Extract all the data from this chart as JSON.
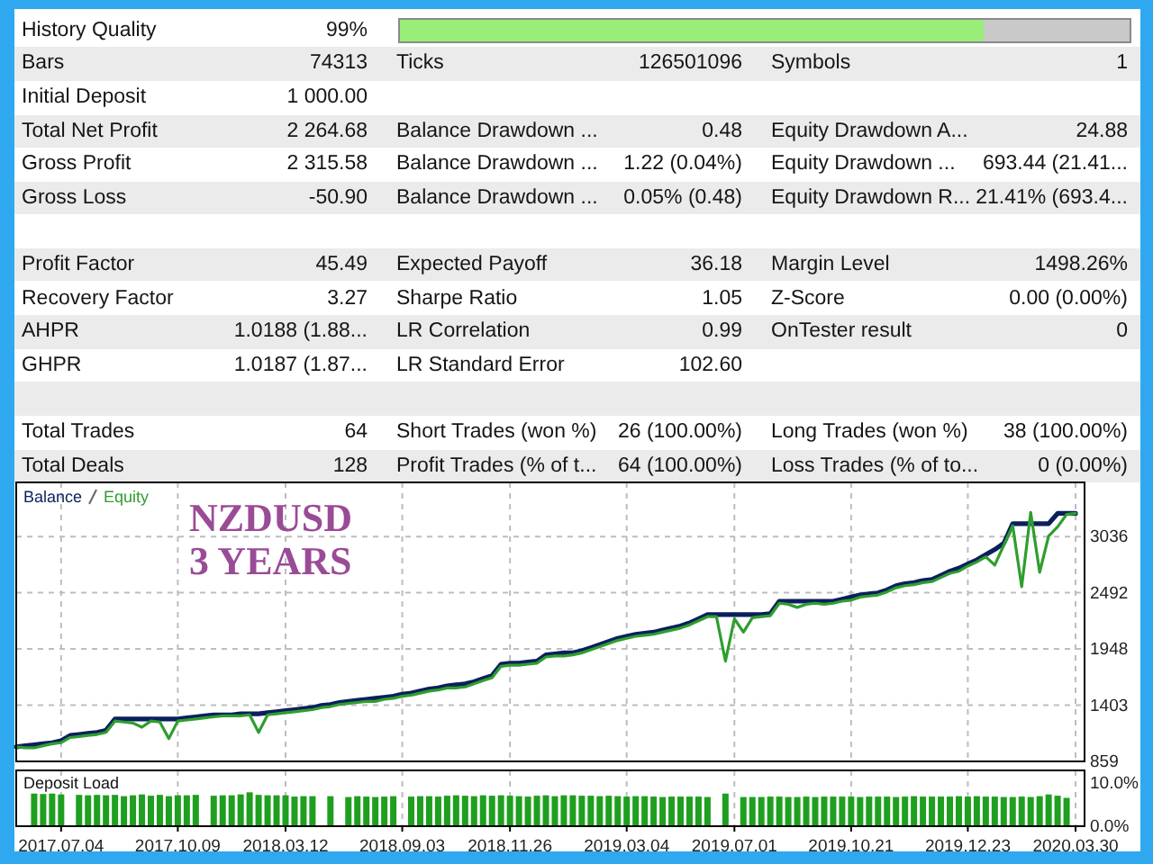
{
  "chart_data": [
    {
      "type": "other",
      "categories": [
        "History Quality",
        null,
        null,
        "Bars",
        "Ticks",
        "Symbols",
        "Initial Deposit",
        null,
        null,
        "Total Net Profit",
        "Balance Drawdown ...",
        "Equity Drawdown A...",
        "Gross Profit",
        "Balance Drawdown ...",
        "Equity Drawdown ...",
        "Gross Loss",
        "Balance Drawdown ...",
        "Equity Drawdown R...",
        null,
        null,
        null,
        "Profit Factor",
        "Expected Payoff",
        "Margin Level",
        "Recovery Factor",
        "Sharpe Ratio",
        "Z-Score",
        "AHPR",
        "LR Correlation",
        "OnTester result",
        "GHPR",
        "LR Standard Error",
        null,
        null,
        null,
        null,
        "Total Trades",
        "Short Trades (won %)",
        "Long Trades (won %)",
        "Total Deals",
        "Profit Trades (% of t...",
        "Loss Trades (% of to..."
      ],
      "value_labels": [
        "99%",
        null,
        null,
        "74313",
        "126501096",
        "1",
        "1 000.00",
        null,
        null,
        "2 264.68",
        "0.48",
        "24.88",
        "2 315.58",
        "1.22 (0.04%)",
        "693.44 (21.41...",
        "-50.90",
        "0.05% (0.48)",
        "21.41% (693.4...",
        null,
        null,
        null,
        "45.49",
        "36.18",
        "1498.26%",
        "3.27",
        "1.05",
        "0.00 (0.00%)",
        "1.0188 (1.88...",
        "0.99",
        "0",
        "1.0187 (1.87...",
        "102.60",
        null,
        null,
        null,
        null,
        "64",
        "26 (100.00%)",
        "38 (100.00%)",
        "128",
        "64 (100.00%)",
        "0 (0.00%)"
      ]
    },
    {
      "type": "line",
      "categories": [
        null,
        null,
        null,
        null,
        null,
        "2017.07.04",
        null,
        null,
        null,
        null,
        null,
        null,
        null,
        null,
        null,
        null,
        null,
        null,
        "2017.10.09",
        null,
        null,
        null,
        null,
        null,
        null,
        null,
        null,
        null,
        null,
        null,
        "2018.03.12",
        null,
        null,
        null,
        null,
        null,
        null,
        null,
        null,
        null,
        null,
        null,
        null,
        "2018.09.03",
        null,
        null,
        null,
        null,
        null,
        null,
        null,
        null,
        null,
        null,
        null,
        "2018.11.26",
        null,
        null,
        null,
        null,
        null,
        null,
        null,
        null,
        null,
        null,
        null,
        null,
        "2019.03.04",
        null,
        null,
        null,
        null,
        null,
        null,
        null,
        null,
        null,
        null,
        null,
        "2019.07.01",
        null,
        null,
        null,
        null,
        null,
        null,
        null,
        null,
        null,
        null,
        null,
        null,
        "2019.10.21",
        null,
        null,
        null,
        null,
        null,
        null,
        null,
        null,
        null,
        null,
        null,
        null,
        "2019.12.23",
        null,
        null,
        null,
        null,
        null,
        null,
        null,
        null,
        null,
        null,
        null,
        "2020.03.30",
        null
      ],
      "series": [
        {
          "name": "Balance",
          "color": "#0b1f5c",
          "values": [
            1000,
            1010,
            1020,
            1030,
            1040,
            1060,
            1110,
            1120,
            1130,
            1140,
            1160,
            1270,
            1270,
            1270,
            1270,
            1270,
            1270,
            1270,
            1270,
            1280,
            1290,
            1300,
            1310,
            1310,
            1310,
            1320,
            1320,
            1320,
            1330,
            1340,
            1350,
            1360,
            1370,
            1380,
            1400,
            1410,
            1430,
            1440,
            1450,
            1460,
            1470,
            1480,
            1490,
            1510,
            1520,
            1540,
            1560,
            1570,
            1590,
            1600,
            1610,
            1630,
            1660,
            1690,
            1800,
            1810,
            1810,
            1820,
            1830,
            1890,
            1900,
            1910,
            1910,
            1930,
            1960,
            1990,
            2020,
            2050,
            2070,
            2090,
            2100,
            2110,
            2130,
            2150,
            2170,
            2200,
            2240,
            2280,
            2280,
            2280,
            2280,
            2280,
            2280,
            2280,
            2290,
            2410,
            2410,
            2410,
            2410,
            2410,
            2410,
            2410,
            2430,
            2450,
            2470,
            2480,
            2490,
            2520,
            2560,
            2580,
            2590,
            2610,
            2620,
            2660,
            2700,
            2730,
            2770,
            2810,
            2860,
            2910,
            2970,
            3160,
            3160,
            3160,
            3160,
            3160,
            3260,
            3260,
            3260,
            null
          ]
        },
        {
          "name": "Equity",
          "color": "#2e9e2e",
          "values": [
            1000,
            990,
            990,
            1010,
            1030,
            1040,
            1090,
            1100,
            1110,
            1120,
            1140,
            1250,
            1240,
            1230,
            1190,
            1250,
            1240,
            1080,
            1250,
            1260,
            1270,
            1280,
            1290,
            1300,
            1300,
            1300,
            1310,
            1140,
            1310,
            1320,
            1330,
            1340,
            1350,
            1360,
            1380,
            1390,
            1410,
            1420,
            1430,
            1440,
            1440,
            1460,
            1470,
            1490,
            1500,
            1520,
            1540,
            1550,
            1570,
            1570,
            1580,
            1610,
            1640,
            1670,
            1780,
            1790,
            1790,
            1800,
            1810,
            1870,
            1880,
            1880,
            1890,
            1910,
            1940,
            1970,
            2000,
            2030,
            2050,
            2070,
            2080,
            2090,
            2110,
            2130,
            2150,
            2180,
            2220,
            2260,
            2260,
            1830,
            2240,
            2110,
            2250,
            2260,
            2270,
            2390,
            2380,
            2350,
            2380,
            2390,
            2380,
            2390,
            2410,
            2420,
            2450,
            2460,
            2470,
            2500,
            2540,
            2560,
            2570,
            2590,
            2600,
            2640,
            2680,
            2700,
            2750,
            2790,
            2840,
            2760,
            2950,
            3140,
            2550,
            3270,
            2690,
            3040,
            3130,
            3250,
            3260,
            null
          ]
        }
      ],
      "ylim": [
        859,
        3560
      ],
      "yticks": [
        859,
        1403,
        1948,
        2492,
        3036
      ],
      "grid": true,
      "legend": "top left",
      "tick_labels": "y",
      "annotations": [
        "NZDUSD",
        "3 YEARS"
      ]
    },
    {
      "type": "bar",
      "title": "Deposit Load",
      "color": "#1f9f1f",
      "categories": [
        null,
        null,
        null,
        null,
        null,
        "2017.07.04",
        null,
        null,
        null,
        null,
        null,
        null,
        null,
        null,
        null,
        null,
        null,
        null,
        "2017.10.09",
        null,
        null,
        null,
        null,
        null,
        null,
        null,
        null,
        null,
        null,
        null,
        "2018.03.12",
        null,
        null,
        null,
        null,
        null,
        null,
        null,
        null,
        null,
        null,
        null,
        null,
        "2018.09.03",
        null,
        null,
        null,
        null,
        null,
        null,
        null,
        null,
        null,
        null,
        null,
        "2018.11.26",
        null,
        null,
        null,
        null,
        null,
        null,
        null,
        null,
        null,
        null,
        null,
        null,
        "2019.03.04",
        null,
        null,
        null,
        null,
        null,
        null,
        null,
        null,
        null,
        null,
        null,
        "2019.07.01",
        null,
        null,
        null,
        null,
        null,
        null,
        null,
        null,
        null,
        null,
        null,
        null,
        "2019.10.21",
        null,
        null,
        null,
        null,
        null,
        null,
        null,
        null,
        null,
        null,
        null,
        null,
        "2019.12.23",
        null,
        null,
        null,
        null,
        null,
        null,
        null,
        null,
        null,
        null,
        null,
        "2020.03.30",
        null
      ],
      "values": [
        null,
        null,
        7.6,
        7.5,
        7.6,
        7.4,
        null,
        7.3,
        7.2,
        7.3,
        7.2,
        7.3,
        7.0,
        7.2,
        7.4,
        7.1,
        7.3,
        7.0,
        7.2,
        7.2,
        7.3,
        null,
        7.1,
        7.2,
        7.2,
        7.4,
        7.9,
        7.3,
        7.2,
        7.2,
        7.2,
        6.9,
        7.0,
        7.0,
        null,
        7.0,
        null,
        6.8,
        7.0,
        6.9,
        6.8,
        6.9,
        7.0,
        null,
        6.9,
        7.0,
        7.0,
        6.9,
        7.1,
        7.2,
        7.1,
        7.0,
        7.2,
        7.1,
        7.2,
        7.1,
        7.0,
        6.9,
        7.1,
        7.2,
        7.0,
        7.2,
        7.2,
        7.1,
        7.1,
        7.0,
        7.1,
        7.0,
        6.9,
        7.0,
        7.0,
        6.9,
        6.8,
        6.9,
        6.9,
        6.9,
        6.9,
        6.8,
        null,
        7.6,
        null,
        6.8,
        6.8,
        6.8,
        6.9,
        6.9,
        6.8,
        6.8,
        6.9,
        6.8,
        6.9,
        6.9,
        6.9,
        6.9,
        6.8,
        6.9,
        6.9,
        6.9,
        6.8,
        6.9,
        7.0,
        6.9,
        6.9,
        6.9,
        6.9,
        7.0,
        6.9,
        7.0,
        6.9,
        6.9,
        6.8,
        6.8,
        6.9,
        6.8,
        7.0,
        7.4,
        7.1,
        6.6,
        null,
        null
      ],
      "ylim": [
        0,
        13
      ],
      "yticks": [
        {
          "value": 0,
          "label": "0.0%"
        },
        {
          "value": 10,
          "label": "10.0%"
        }
      ],
      "grid": "x"
    }
  ]
}
